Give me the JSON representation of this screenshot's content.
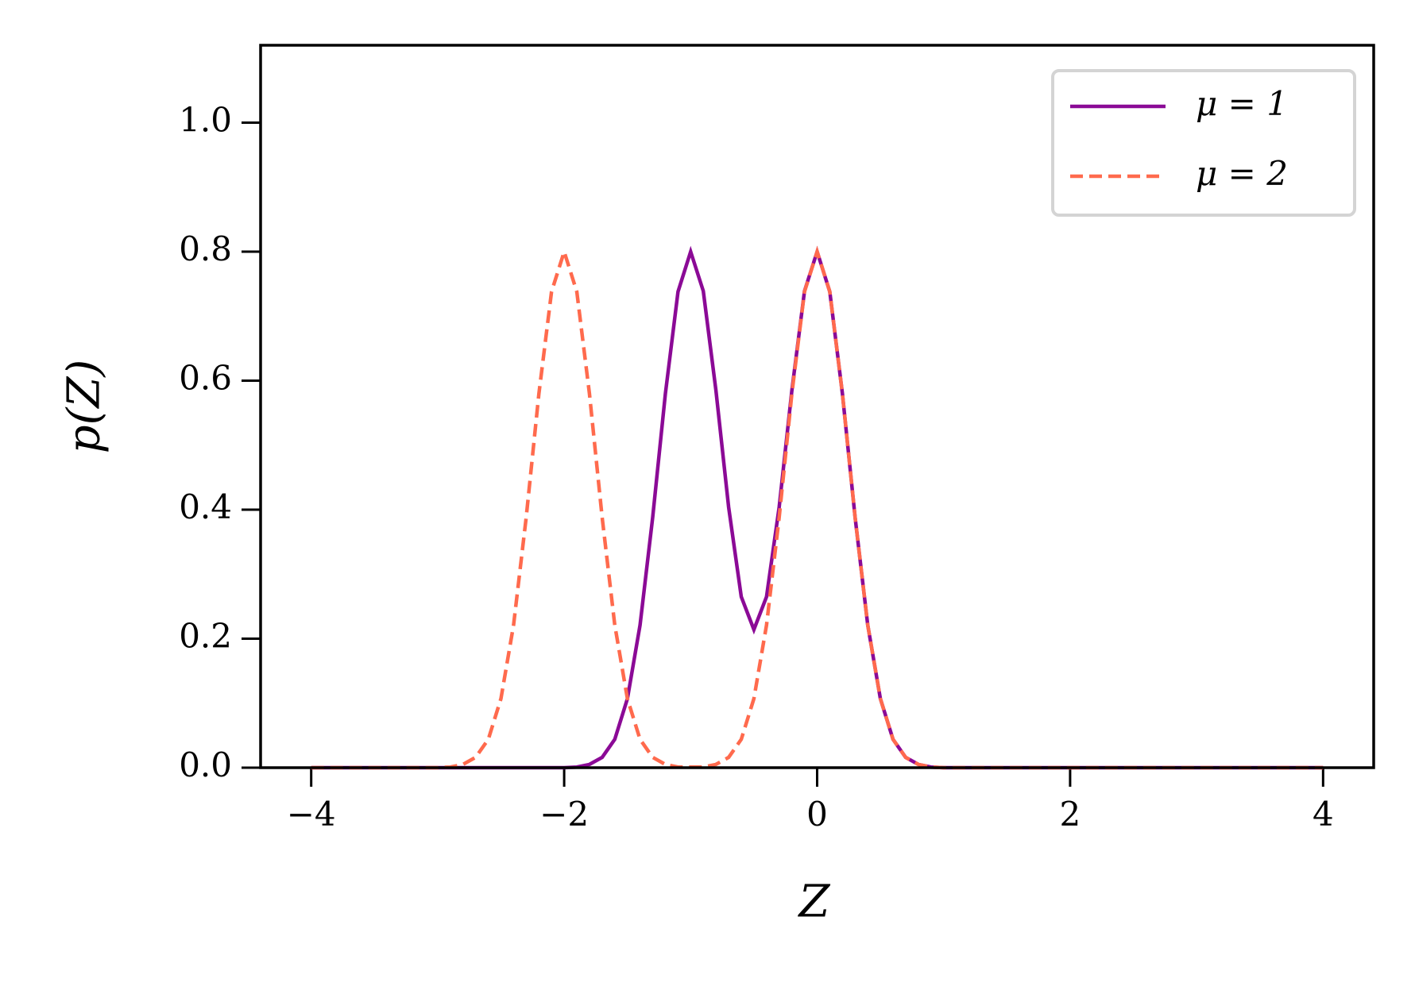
{
  "chart_data": {
    "type": "line",
    "xlabel": "Z",
    "ylabel": "p(Z)",
    "x": [
      -4,
      -3.9,
      -3.8,
      -3.7,
      -3.6,
      -3.5,
      -3.4,
      -3.3,
      -3.2,
      -3.1,
      -3,
      -2.9,
      -2.8,
      -2.7,
      -2.6,
      -2.5,
      -2.4,
      -2.3,
      -2.2,
      -2.1,
      -2,
      -1.9,
      -1.8,
      -1.7,
      -1.6,
      -1.5,
      -1.4,
      -1.3,
      -1.2,
      -1.1,
      -1,
      -0.9,
      -0.8,
      -0.7,
      -0.6,
      -0.5,
      -0.4,
      -0.3,
      -0.2,
      -0.1,
      0,
      0.1,
      0.2,
      0.3,
      0.4,
      0.5,
      0.6,
      0.7,
      0.8,
      0.9,
      1,
      1.1,
      1.2,
      1.3,
      1.4,
      1.5,
      1.6,
      1.7,
      1.8,
      1.9,
      2,
      2.1,
      2.2,
      2.3,
      2.4,
      2.5,
      2.6,
      2.7,
      2.8,
      2.9,
      3,
      3.1,
      3.2,
      3.3,
      3.4,
      3.5,
      3.6,
      3.7,
      3.8,
      3.9,
      4
    ],
    "series": [
      {
        "name": "μ = 1",
        "color": "#8b0a96",
        "dash": false,
        "values": [
          0,
          0,
          0,
          0,
          0,
          0,
          0,
          0,
          0,
          0,
          0,
          0,
          0,
          0,
          0,
          0,
          0,
          0,
          0,
          0,
          0,
          0.001,
          0.005,
          0.016,
          0.044,
          0.107,
          0.221,
          0.388,
          0.58,
          0.738,
          0.8,
          0.739,
          0.585,
          0.404,
          0.265,
          0.214,
          0.265,
          0.404,
          0.585,
          0.739,
          0.8,
          0.738,
          0.58,
          0.388,
          0.221,
          0.107,
          0.044,
          0.016,
          0.005,
          0.001,
          0,
          0,
          0,
          0,
          0,
          0,
          0,
          0,
          0,
          0,
          0,
          0,
          0,
          0,
          0,
          0,
          0,
          0,
          0,
          0,
          0,
          0,
          0,
          0,
          0,
          0,
          0,
          0,
          0,
          0,
          0
        ]
      },
      {
        "name": "μ = 2",
        "color": "#ff6a4d",
        "dash": true,
        "values": [
          0,
          0,
          0,
          0,
          0,
          0,
          0,
          0,
          0,
          0,
          0,
          0.001,
          0.005,
          0.016,
          0.044,
          0.107,
          0.221,
          0.388,
          0.58,
          0.738,
          0.8,
          0.738,
          0.58,
          0.388,
          0.221,
          0.107,
          0.044,
          0.016,
          0.005,
          0.001,
          0.001,
          0.001,
          0.005,
          0.016,
          0.044,
          0.107,
          0.221,
          0.388,
          0.58,
          0.738,
          0.8,
          0.738,
          0.58,
          0.388,
          0.221,
          0.107,
          0.044,
          0.016,
          0.005,
          0.001,
          0,
          0,
          0,
          0,
          0,
          0,
          0,
          0,
          0,
          0,
          0,
          0,
          0,
          0,
          0,
          0,
          0,
          0,
          0,
          0,
          0,
          0,
          0,
          0,
          0,
          0,
          0,
          0,
          0,
          0,
          0
        ]
      }
    ],
    "xlim": [
      -4.4,
      4.4
    ],
    "xticks": [
      {
        "value": -4,
        "label": "−4"
      },
      {
        "value": -2,
        "label": "−2"
      },
      0,
      2,
      4
    ],
    "ylim": [
      0,
      1.12
    ],
    "yticks": [
      {
        "value": 0,
        "label": "0.0"
      },
      0.2,
      0.4,
      0.6,
      0.8,
      {
        "value": 1,
        "label": "1.0"
      }
    ],
    "legend": "upper right"
  }
}
